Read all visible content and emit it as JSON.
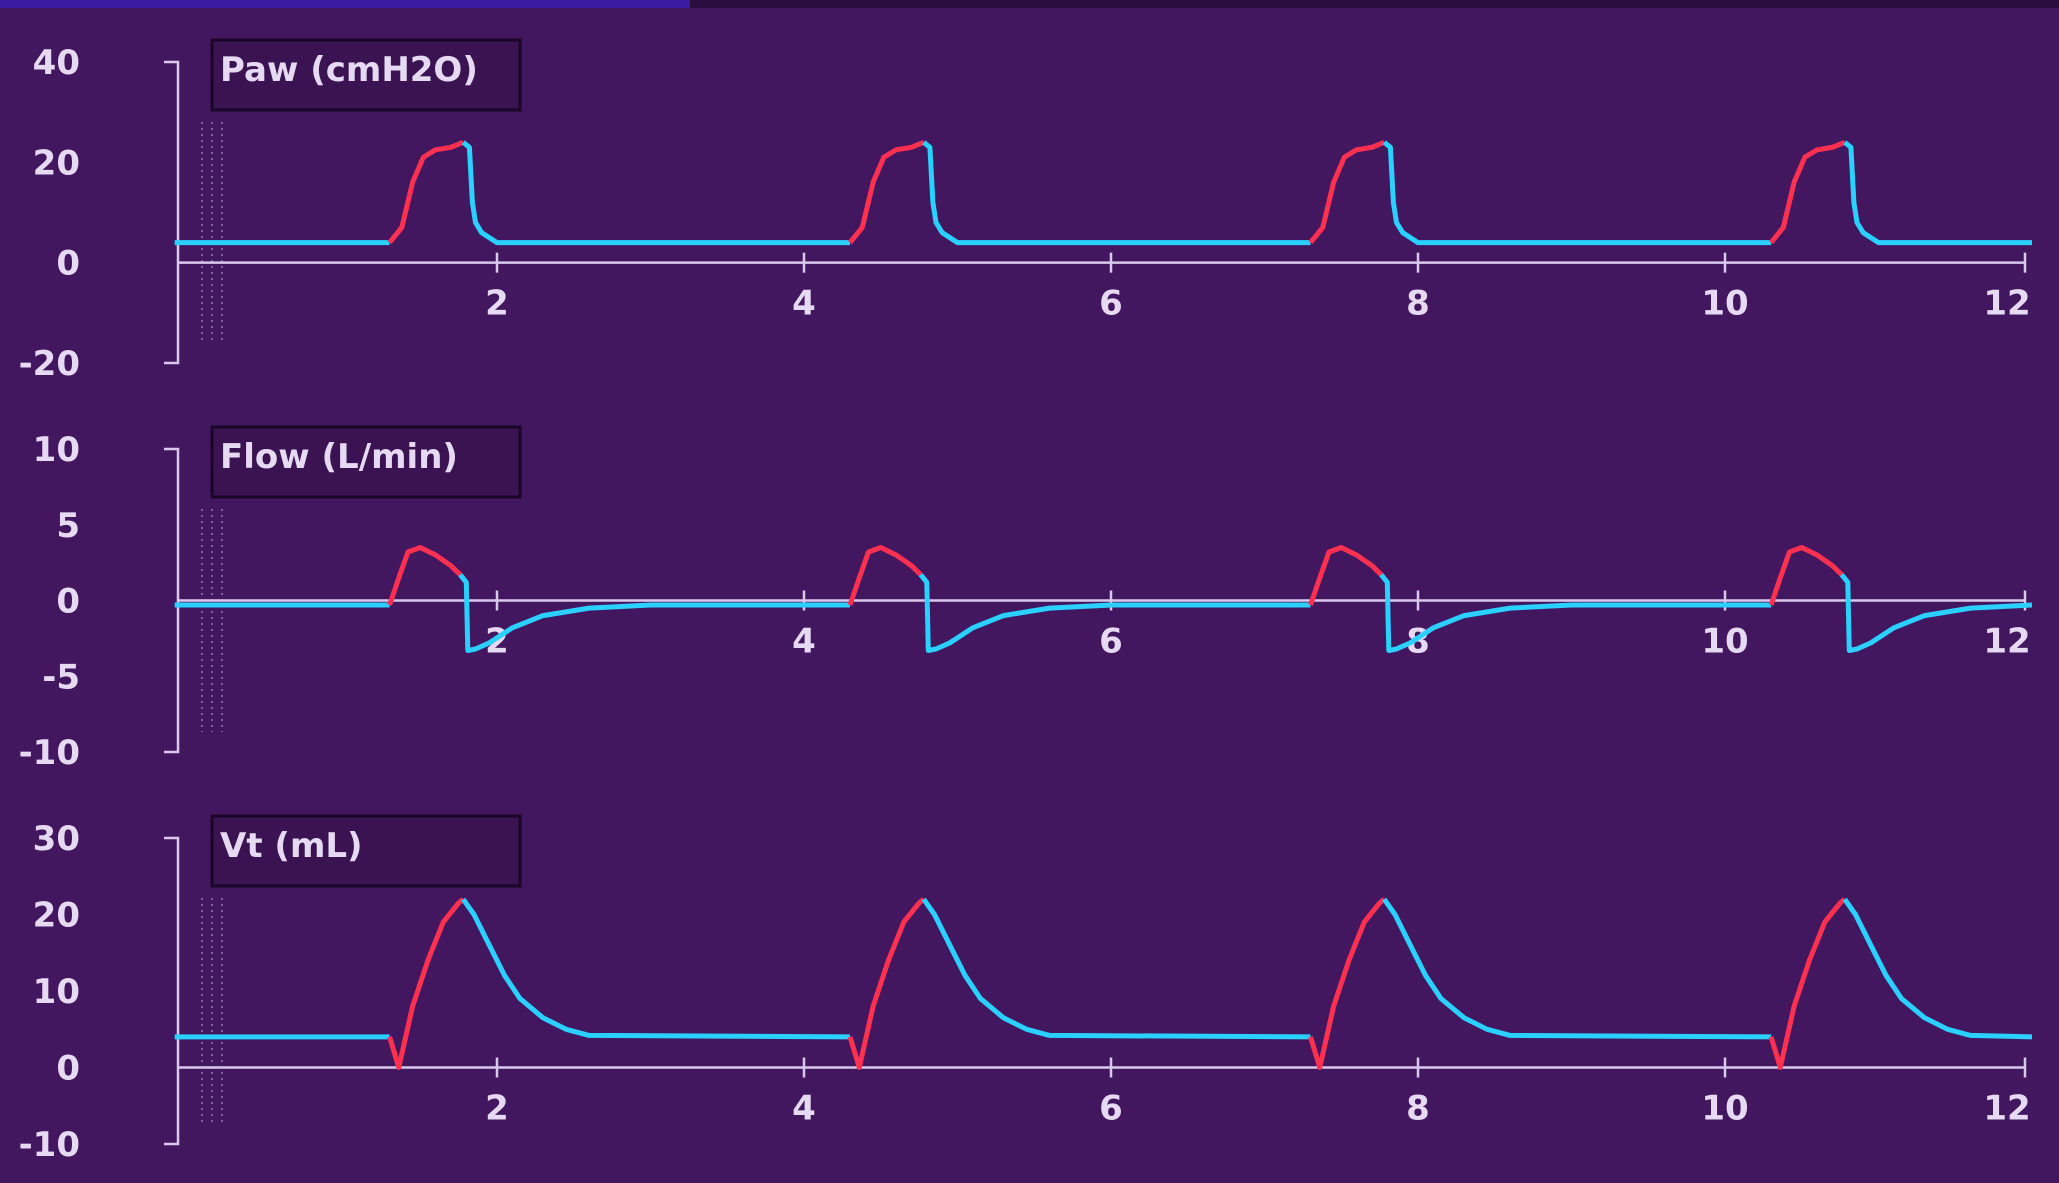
{
  "colors": {
    "background": "#43175f",
    "inspiration": "#ff3050",
    "expiration": "#2ad0ff",
    "axis": "#d8c8ec",
    "text": "#e6d9f2"
  },
  "chart_data": [
    {
      "type": "line",
      "title": "Paw (cmH2O)",
      "ylim": [
        -20,
        40
      ],
      "yticks": [
        "40",
        "20",
        "0",
        "-20"
      ],
      "xlim": [
        0,
        12
      ],
      "xticks": [
        "2",
        "4",
        "6",
        "8",
        "10",
        "12"
      ],
      "baseline": 4,
      "breath_starts": [
        1.3,
        4.3,
        7.3,
        10.3
      ],
      "series": [
        {
          "phase": "inspiration",
          "x": [
            1.3,
            1.38,
            1.45,
            1.52,
            1.6,
            1.7,
            1.78
          ],
          "y": [
            4,
            7,
            16,
            21,
            22.5,
            23,
            24
          ]
        },
        {
          "phase": "expiration",
          "x": [
            1.78,
            1.82,
            1.84,
            1.86,
            1.9,
            2.0,
            12
          ],
          "y": [
            24,
            23,
            12,
            8,
            6,
            4,
            4
          ]
        }
      ]
    },
    {
      "type": "line",
      "title": "Flow (L/min)",
      "ylim": [
        -10,
        10
      ],
      "yticks": [
        "10",
        "5",
        "0",
        "-5",
        "-10"
      ],
      "xlim": [
        0,
        12
      ],
      "xticks": [
        "2",
        "4",
        "6",
        "8",
        "10",
        "12"
      ],
      "baseline": -0.3,
      "breath_starts": [
        1.3,
        4.3,
        7.3,
        10.3
      ],
      "series": [
        {
          "phase": "inspiration",
          "x": [
            1.3,
            1.36,
            1.42,
            1.5,
            1.6,
            1.7,
            1.76
          ],
          "y": [
            -0.3,
            1.5,
            3.2,
            3.5,
            3.0,
            2.3,
            1.7
          ]
        },
        {
          "phase": "expiration",
          "x": [
            1.76,
            1.8,
            1.81,
            1.86,
            1.95,
            2.1,
            2.3,
            2.6,
            3.0,
            4.3
          ],
          "y": [
            1.7,
            1.2,
            -3.3,
            -3.2,
            -2.8,
            -1.8,
            -1.0,
            -0.5,
            -0.3,
            -0.3
          ]
        }
      ]
    },
    {
      "type": "line",
      "title": "Vt (mL)",
      "ylim": [
        -10,
        30
      ],
      "yticks": [
        "30",
        "20",
        "10",
        "0",
        "-10"
      ],
      "xlim": [
        0,
        12
      ],
      "xticks": [
        "2",
        "4",
        "6",
        "8",
        "10",
        "12"
      ],
      "baseline": 4,
      "breath_starts": [
        1.3,
        4.3,
        7.3,
        10.3
      ],
      "series": [
        {
          "phase": "inspiration",
          "x": [
            1.3,
            1.36,
            1.45,
            1.55,
            1.65,
            1.75,
            1.78
          ],
          "y": [
            4,
            0,
            8,
            14,
            19,
            21.5,
            22
          ]
        },
        {
          "phase": "expiration",
          "x": [
            1.78,
            1.85,
            1.95,
            2.05,
            2.15,
            2.3,
            2.45,
            2.6,
            4.3
          ],
          "y": [
            22,
            20,
            16,
            12,
            9,
            6.5,
            5,
            4.2,
            4
          ]
        }
      ]
    }
  ]
}
